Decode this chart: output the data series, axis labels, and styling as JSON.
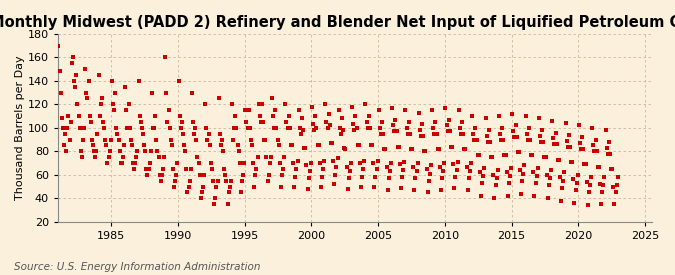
{
  "title": "Monthly Midwest (PADD 2) Refinery and Blender Net Input of Liquified Petroleum Gases",
  "ylabel": "Thousand Barrels per Day",
  "source": "Source: U.S. Energy Information Administration",
  "ylim": [
    20,
    180
  ],
  "yticks": [
    20,
    40,
    60,
    80,
    100,
    120,
    140,
    160,
    180
  ],
  "xlim_start": 1981.0,
  "xlim_end": 2025.5,
  "xticks": [
    1985,
    1990,
    1995,
    2000,
    2005,
    2010,
    2015,
    2020,
    2025
  ],
  "marker_color": "#CC0000",
  "background_color": "#FAF0DC",
  "grid_color": "#C8B89A",
  "title_fontsize": 10.5,
  "label_fontsize": 8,
  "source_fontsize": 7.5,
  "x_start_year": 1981,
  "monthly_values": [
    170,
    148,
    130,
    108,
    100,
    85,
    95,
    80,
    100,
    110,
    90,
    105,
    155,
    160,
    140,
    135,
    145,
    120,
    110,
    100,
    80,
    75,
    90,
    100,
    150,
    130,
    125,
    140,
    110,
    105,
    90,
    85,
    80,
    75,
    80,
    95,
    145,
    110,
    120,
    125,
    105,
    100,
    90,
    85,
    70,
    75,
    80,
    90,
    140,
    120,
    115,
    130,
    100,
    95,
    90,
    80,
    70,
    70,
    75,
    85,
    135,
    115,
    100,
    120,
    100,
    90,
    85,
    70,
    65,
    70,
    75,
    80,
    140,
    110,
    105,
    100,
    95,
    85,
    80,
    65,
    60,
    65,
    70,
    80,
    130,
    100,
    100,
    110,
    90,
    80,
    75,
    60,
    55,
    60,
    65,
    75,
    160,
    130,
    105,
    115,
    100,
    90,
    85,
    65,
    50,
    55,
    60,
    70,
    140,
    110,
    100,
    105,
    95,
    85,
    80,
    65,
    45,
    50,
    55,
    65,
    130,
    105,
    95,
    100,
    90,
    75,
    70,
    60,
    40,
    45,
    50,
    60,
    120,
    100,
    90,
    95,
    85,
    70,
    65,
    55,
    35,
    40,
    50,
    55,
    125,
    95,
    85,
    90,
    80,
    65,
    60,
    55,
    35,
    45,
    50,
    55,
    120,
    90,
    100,
    110,
    100,
    85,
    80,
    70,
    45,
    55,
    60,
    70,
    115,
    105,
    100,
    115,
    100,
    90,
    85,
    70,
    50,
    60,
    65,
    75,
    120,
    110,
    105,
    120,
    105,
    90,
    90,
    75,
    55,
    60,
    70,
    75,
    125,
    110,
    100,
    115,
    100,
    90,
    85,
    70,
    50,
    60,
    65,
    75,
    120,
    105,
    100,
    110,
    100,
    85,
    85,
    70,
    50,
    58,
    65,
    72,
    115,
    100,
    95,
    108,
    98,
    83,
    83,
    68,
    48,
    57,
    63,
    70,
    118,
    103,
    98,
    110,
    100,
    85,
    85,
    70,
    50,
    58,
    65,
    72,
    120,
    105,
    100,
    112,
    102,
    87,
    87,
    72,
    52,
    60,
    67,
    74,
    115,
    100,
    95,
    108,
    98,
    83,
    82,
    67,
    48,
    57,
    63,
    70,
    118,
    103,
    98,
    110,
    100,
    85,
    85,
    70,
    50,
    58,
    65,
    72,
    120,
    105,
    100,
    110,
    100,
    85,
    85,
    70,
    50,
    58,
    65,
    72,
    115,
    100,
    95,
    105,
    95,
    82,
    82,
    67,
    47,
    57,
    63,
    70,
    117,
    102,
    97,
    107,
    97,
    84,
    84,
    69,
    49,
    58,
    64,
    71,
    115,
    100,
    95,
    105,
    95,
    82,
    82,
    67,
    47,
    57,
    63,
    70,
    113,
    98,
    93,
    103,
    93,
    80,
    80,
    65,
    45,
    55,
    61,
    68,
    115,
    100,
    95,
    105,
    95,
    82,
    82,
    67,
    47,
    57,
    63,
    70,
    117,
    102,
    97,
    107,
    97,
    84,
    84,
    69,
    49,
    58,
    64,
    71,
    115,
    100,
    95,
    105,
    95,
    82,
    82,
    67,
    47,
    57,
    63,
    70,
    110,
    95,
    90,
    100,
    90,
    77,
    77,
    62,
    42,
    53,
    59,
    66,
    108,
    93,
    88,
    98,
    88,
    75,
    75,
    60,
    40,
    51,
    57,
    64,
    110,
    95,
    90,
    100,
    90,
    77,
    77,
    62,
    42,
    53,
    59,
    66,
    112,
    97,
    92,
    102,
    92,
    79,
    79,
    64,
    44,
    55,
    61,
    68,
    110,
    95,
    90,
    100,
    90,
    77,
    77,
    62,
    42,
    53,
    59,
    66,
    108,
    93,
    88,
    98,
    88,
    75,
    75,
    60,
    40,
    51,
    57,
    64,
    106,
    91,
    86,
    96,
    86,
    73,
    73,
    58,
    38,
    49,
    55,
    62,
    104,
    89,
    84,
    94,
    84,
    71,
    71,
    56,
    36,
    47,
    53,
    60,
    102,
    87,
    82,
    92,
    82,
    69,
    69,
    54,
    34,
    45,
    51,
    58,
    100,
    85,
    80,
    90,
    80,
    67,
    67,
    52,
    35,
    45,
    51,
    58,
    98,
    83,
    78,
    88,
    78,
    65,
    65,
    50,
    35,
    45,
    51,
    58
  ]
}
